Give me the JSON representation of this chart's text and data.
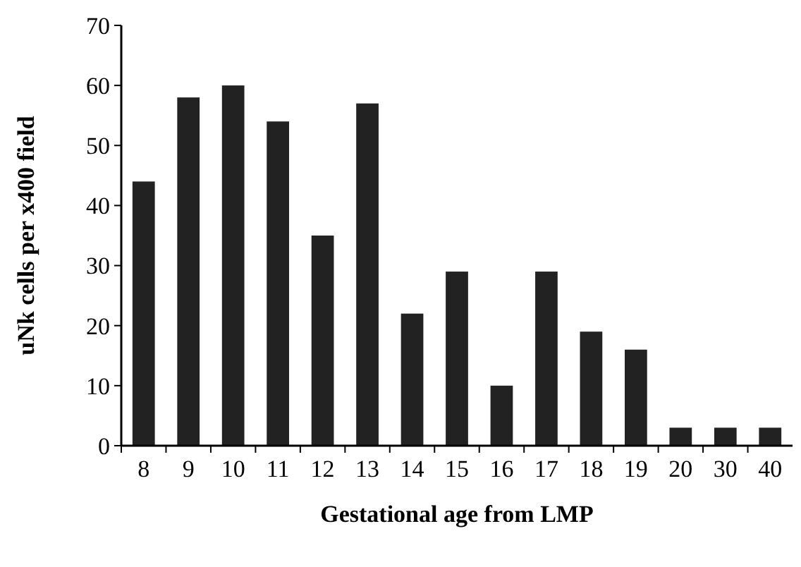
{
  "chart_data": {
    "type": "bar",
    "xlabel": "Gestational age from LMP",
    "ylabel": "uNk cells per x400 field",
    "categories": [
      "8",
      "9",
      "10",
      "11",
      "12",
      "13",
      "14",
      "15",
      "16",
      "17",
      "18",
      "19",
      "20",
      "30",
      "40"
    ],
    "values": [
      44,
      58,
      60,
      54,
      35,
      57,
      22,
      29,
      10,
      29,
      19,
      16,
      3,
      3,
      3
    ],
    "color": "#222222",
    "ylim": [
      0,
      70
    ],
    "yticks": [
      0,
      10,
      20,
      30,
      40,
      50,
      60,
      70
    ],
    "grid": false
  }
}
